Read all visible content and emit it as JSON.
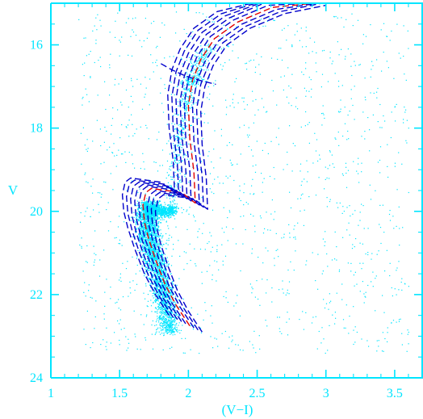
{
  "chart_data": {
    "type": "scatter",
    "title": "",
    "xlabel": "(V−I)",
    "ylabel": "V",
    "xlim": [
      1.0,
      3.7
    ],
    "ylim": [
      24.0,
      15.0
    ],
    "y_axis_inverted": true,
    "grid": false,
    "xticks": [
      {
        "value": 1.0,
        "label": "1"
      },
      {
        "value": 1.5,
        "label": "1.5"
      },
      {
        "value": 2.0,
        "label": "2"
      },
      {
        "value": 2.5,
        "label": "2.5"
      },
      {
        "value": 3.0,
        "label": "3"
      },
      {
        "value": 3.5,
        "label": "3.5"
      }
    ],
    "yticks": [
      {
        "value": 16,
        "label": "16"
      },
      {
        "value": 18,
        "label": "18"
      },
      {
        "value": 20,
        "label": "20"
      },
      {
        "value": 22,
        "label": "22"
      },
      {
        "value": 24,
        "label": "24"
      }
    ],
    "colors": {
      "axes": "#00e5ff",
      "stars": "#00e5ff",
      "isochrones": "#0000cc",
      "highlight_isochrone": "#e00000",
      "background": "#ffffff"
    },
    "stars": {
      "total_points": 6000,
      "components": [
        {
          "name": "main sequence",
          "points": [
            [
              1.86,
              22.9
            ],
            [
              1.82,
              22.0
            ],
            [
              1.75,
              21.2
            ],
            [
              1.71,
              20.6
            ],
            [
              1.7,
              20.1
            ],
            [
              1.72,
              19.8
            ]
          ],
          "count": 3400,
          "spread": [
            0.04,
            0.05
          ]
        },
        {
          "name": "subgiant branch",
          "points": [
            [
              1.72,
              19.95
            ],
            [
              1.82,
              20.0
            ],
            [
              1.9,
              19.95
            ]
          ],
          "count": 700,
          "spread": [
            0.02,
            0.07
          ]
        },
        {
          "name": "red giant branch",
          "points": [
            [
              1.88,
              19.7
            ],
            [
              1.91,
              18.8
            ],
            [
              1.94,
              18.0
            ],
            [
              1.99,
              17.2
            ],
            [
              2.06,
              16.5
            ],
            [
              2.15,
              16.0
            ]
          ],
          "count": 550,
          "spread": [
            0.03,
            0.05
          ]
        },
        {
          "name": "red clump",
          "points": [
            [
              1.97,
              16.9
            ],
            [
              2.08,
              16.8
            ]
          ],
          "count": 70,
          "spread": [
            0.03,
            0.06
          ]
        }
      ],
      "field_count": 1280,
      "field_x_range": [
        1.2,
        3.6
      ],
      "field_y_range": [
        15.2,
        23.4
      ]
    },
    "isochrones": [
      {
        "color": "blue",
        "x": [
          2.1,
          2.0,
          1.92,
          1.85,
          1.8,
          1.77,
          1.76,
          1.78,
          1.82,
          2.04,
          2.14,
          2.13,
          2.1,
          2.09,
          2.12,
          2.18,
          2.28,
          2.45,
          2.7,
          3.0
        ],
        "y": [
          22.9,
          22.4,
          21.9,
          21.3,
          20.8,
          20.4,
          20.0,
          19.7,
          19.6,
          19.7,
          19.95,
          19.2,
          18.4,
          17.6,
          17.0,
          16.5,
          16.0,
          15.6,
          15.25,
          15.05
        ]
      },
      {
        "color": "blue",
        "x": [
          2.07,
          1.97,
          1.89,
          1.82,
          1.77,
          1.74,
          1.73,
          1.75,
          1.79,
          2.01,
          2.11,
          2.1,
          2.07,
          2.06,
          2.09,
          2.15,
          2.25,
          2.42,
          2.67,
          2.97
        ],
        "y": [
          22.85,
          22.35,
          21.85,
          21.25,
          20.75,
          20.35,
          19.95,
          19.65,
          19.55,
          19.65,
          19.9,
          19.15,
          18.35,
          17.55,
          16.95,
          16.45,
          15.95,
          15.55,
          15.2,
          15.0
        ]
      },
      {
        "color": "blue",
        "x": [
          2.04,
          1.94,
          1.86,
          1.79,
          1.74,
          1.71,
          1.7,
          1.72,
          1.76,
          1.98,
          2.08,
          2.07,
          2.04,
          2.03,
          2.06,
          2.12,
          2.22,
          2.39,
          2.64,
          2.94
        ],
        "y": [
          22.8,
          22.3,
          21.8,
          21.2,
          20.7,
          20.3,
          19.9,
          19.6,
          19.5,
          19.6,
          19.85,
          19.1,
          18.3,
          17.5,
          16.9,
          16.4,
          15.9,
          15.5,
          15.15,
          15.0
        ]
      },
      {
        "color": "red",
        "x": [
          2.01,
          1.91,
          1.83,
          1.76,
          1.71,
          1.68,
          1.67,
          1.69,
          1.73,
          1.95,
          2.05,
          2.04,
          2.01,
          2.0,
          2.03,
          2.09,
          2.19,
          2.36,
          2.61,
          2.91
        ],
        "y": [
          22.75,
          22.25,
          21.75,
          21.15,
          20.65,
          20.25,
          19.85,
          19.55,
          19.45,
          19.55,
          19.8,
          19.05,
          18.25,
          17.45,
          16.85,
          16.35,
          15.85,
          15.45,
          15.1,
          15.0
        ]
      },
      {
        "color": "blue",
        "x": [
          1.98,
          1.88,
          1.8,
          1.73,
          1.68,
          1.65,
          1.64,
          1.66,
          1.7,
          1.92,
          2.02,
          2.01,
          1.98,
          1.97,
          2.0,
          2.06,
          2.16,
          2.33,
          2.58,
          2.88
        ],
        "y": [
          22.7,
          22.2,
          21.7,
          21.1,
          20.6,
          20.2,
          19.8,
          19.5,
          19.4,
          19.5,
          19.75,
          19.0,
          18.2,
          17.4,
          16.8,
          16.3,
          15.8,
          15.4,
          15.05,
          15.0
        ]
      },
      {
        "color": "blue",
        "x": [
          1.95,
          1.85,
          1.77,
          1.7,
          1.65,
          1.62,
          1.61,
          1.63,
          1.67,
          1.89,
          1.99,
          1.98,
          1.95,
          1.94,
          1.97,
          2.03,
          2.13,
          2.3,
          2.55,
          2.85
        ],
        "y": [
          22.65,
          22.15,
          21.65,
          21.05,
          20.55,
          20.15,
          19.75,
          19.45,
          19.35,
          19.45,
          19.7,
          18.95,
          18.15,
          17.35,
          16.75,
          16.25,
          15.75,
          15.35,
          15.0,
          15.0
        ]
      },
      {
        "color": "blue",
        "x": [
          1.92,
          1.82,
          1.74,
          1.67,
          1.62,
          1.59,
          1.58,
          1.6,
          1.64,
          1.86,
          1.96,
          1.95,
          1.92,
          1.91,
          1.94,
          2.0,
          2.1,
          2.27,
          2.52,
          2.82
        ],
        "y": [
          22.6,
          22.1,
          21.6,
          21.0,
          20.5,
          20.1,
          19.7,
          19.4,
          19.3,
          19.4,
          19.65,
          18.9,
          18.1,
          17.3,
          16.7,
          16.2,
          15.7,
          15.3,
          15.0,
          15.0
        ]
      },
      {
        "color": "blue",
        "x": [
          1.89,
          1.79,
          1.71,
          1.64,
          1.59,
          1.56,
          1.55,
          1.57,
          1.61,
          1.83,
          1.93,
          1.92,
          1.89,
          1.88,
          1.91,
          1.97,
          2.07,
          2.24,
          2.49,
          2.79
        ],
        "y": [
          22.55,
          22.05,
          21.55,
          20.95,
          20.45,
          20.05,
          19.65,
          19.35,
          19.25,
          19.35,
          19.6,
          18.85,
          18.05,
          17.25,
          16.65,
          16.15,
          15.65,
          15.25,
          15.0,
          15.0
        ]
      },
      {
        "color": "blue",
        "x": [
          1.86,
          1.76,
          1.68,
          1.61,
          1.56,
          1.53,
          1.52,
          1.54,
          1.58,
          1.8,
          1.9,
          1.89,
          1.86,
          1.85,
          1.88,
          1.94,
          2.04,
          2.21,
          2.46,
          2.76
        ],
        "y": [
          22.5,
          22.0,
          21.5,
          20.9,
          20.4,
          20.0,
          19.6,
          19.3,
          19.2,
          19.3,
          19.55,
          18.8,
          18.0,
          17.2,
          16.6,
          16.1,
          15.6,
          15.2,
          15.0,
          15.0
        ]
      }
    ],
    "horizontal_branch": {
      "color": "blue",
      "x": [
        1.8,
        1.88,
        1.98,
        2.08,
        2.2
      ],
      "y": [
        16.45,
        16.6,
        16.75,
        16.85,
        16.95
      ]
    }
  }
}
